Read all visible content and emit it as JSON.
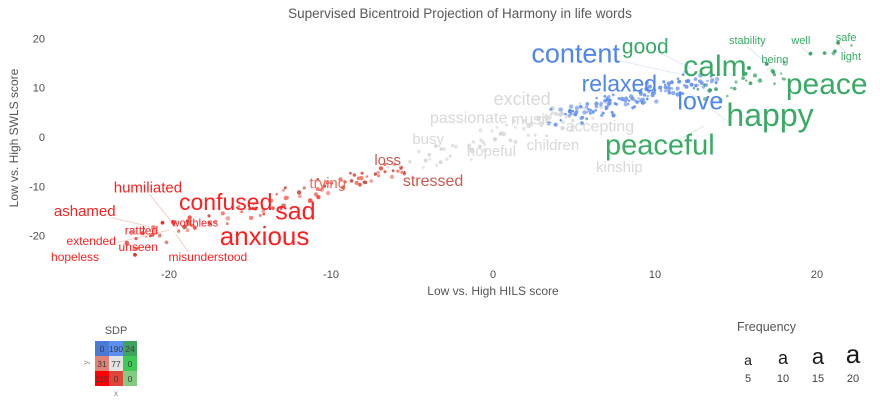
{
  "title": "Supervised Bicentroid Projection of Harmony in life words",
  "axes": {
    "x_label": "Low vs. High HILS score",
    "y_label": "Low vs. High SWLS score",
    "x_ticks": [
      -20,
      -10,
      0,
      10,
      20
    ],
    "y_ticks": [
      20,
      10,
      0,
      -10,
      -20
    ]
  },
  "chart_data": {
    "type": "scatter",
    "title": "Supervised Bicentroid Projection of Harmony in life words",
    "xlabel": "Low vs. High HILS score",
    "ylabel": "Low vs. High SWLS score",
    "xlim": [
      -27,
      24
    ],
    "ylim": [
      -27,
      23
    ],
    "grid": false,
    "legend_position": "bottom",
    "palette": {
      "red": "#ff1f1f",
      "redMuted": "#cd5a50",
      "redLight": "#f4695a",
      "gray": "#d9d9d9",
      "blue": "#4f86ec",
      "green": "#3aab66"
    },
    "words": [
      {
        "text": "hopeless",
        "x": -25.8,
        "y": -24.5,
        "size": 12,
        "color": "red"
      },
      {
        "text": "extended",
        "x": -24.8,
        "y": -21.3,
        "size": 12,
        "color": "red"
      },
      {
        "text": "ashamed",
        "x": -25.2,
        "y": -15.2,
        "size": 15,
        "color": "red"
      },
      {
        "text": "unseen",
        "x": -21.9,
        "y": -22.5,
        "size": 12,
        "color": "red"
      },
      {
        "text": "rattled",
        "x": -21.7,
        "y": -19.1,
        "size": 12,
        "color": "red"
      },
      {
        "text": "humiliated",
        "x": -21.3,
        "y": -10.5,
        "size": 15,
        "color": "red"
      },
      {
        "text": "worthless",
        "x": -18.4,
        "y": -17.6,
        "size": 11,
        "color": "red"
      },
      {
        "text": "misunderstood",
        "x": -17.6,
        "y": -24.5,
        "size": 12,
        "color": "red"
      },
      {
        "text": "confused",
        "x": -16.5,
        "y": -13.6,
        "size": 23,
        "color": "red"
      },
      {
        "text": "anxious",
        "x": -14.1,
        "y": -20.5,
        "size": 26,
        "color": "red"
      },
      {
        "text": "sad",
        "x": -12.2,
        "y": -15.4,
        "size": 25,
        "color": "red"
      },
      {
        "text": "trying",
        "x": -10.2,
        "y": -9.5,
        "size": 15,
        "color": "redLight"
      },
      {
        "text": "loss",
        "x": -6.5,
        "y": -4.9,
        "size": 15,
        "color": "redMuted"
      },
      {
        "text": "stressed",
        "x": -3.7,
        "y": -9.1,
        "size": 16,
        "color": "redMuted"
      },
      {
        "text": "busy",
        "x": -4.0,
        "y": -0.6,
        "size": 15,
        "color": "gray"
      },
      {
        "text": "passionate",
        "x": -1.5,
        "y": 3.7,
        "size": 16,
        "color": "gray"
      },
      {
        "text": "hopeful",
        "x": -0.1,
        "y": -3.0,
        "size": 15,
        "color": "gray"
      },
      {
        "text": "excited",
        "x": 1.8,
        "y": 7.5,
        "size": 18,
        "color": "gray"
      },
      {
        "text": "music",
        "x": 2.4,
        "y": 3.4,
        "size": 16,
        "color": "gray"
      },
      {
        "text": "children",
        "x": 3.7,
        "y": -1.8,
        "size": 15,
        "color": "gray"
      },
      {
        "text": "accepting",
        "x": 6.6,
        "y": 2.0,
        "size": 16,
        "color": "gray"
      },
      {
        "text": "kinship",
        "x": 7.8,
        "y": -6.3,
        "size": 15,
        "color": "gray"
      },
      {
        "text": "content",
        "x": 5.1,
        "y": 16.6,
        "size": 27,
        "color": "blue"
      },
      {
        "text": "relaxed",
        "x": 7.8,
        "y": 10.5,
        "size": 23,
        "color": "blue"
      },
      {
        "text": "love",
        "x": 12.8,
        "y": 6.9,
        "size": 25,
        "color": "blue"
      },
      {
        "text": "good",
        "x": 9.4,
        "y": 18.1,
        "size": 21,
        "color": "green"
      },
      {
        "text": "calm",
        "x": 13.7,
        "y": 14.0,
        "size": 30,
        "color": "green"
      },
      {
        "text": "stability",
        "x": 15.7,
        "y": 19.5,
        "size": 11,
        "color": "green"
      },
      {
        "text": "being",
        "x": 17.4,
        "y": 15.6,
        "size": 11,
        "color": "green"
      },
      {
        "text": "well",
        "x": 19.0,
        "y": 19.5,
        "size": 11,
        "color": "green"
      },
      {
        "text": "safe",
        "x": 21.8,
        "y": 20.1,
        "size": 11,
        "color": "green"
      },
      {
        "text": "light",
        "x": 22.1,
        "y": 16.2,
        "size": 11,
        "color": "green"
      },
      {
        "text": "peace",
        "x": 20.6,
        "y": 10.3,
        "size": 30,
        "color": "green"
      },
      {
        "text": "happy",
        "x": 17.1,
        "y": 3.9,
        "size": 32,
        "color": "green"
      },
      {
        "text": "peaceful",
        "x": 10.3,
        "y": -2.0,
        "size": 29,
        "color": "green"
      }
    ],
    "clusters": [
      {
        "name": "low-harmony-red",
        "x1": -22.5,
        "y1": -21.5,
        "x2": -5.5,
        "y2": -6.0,
        "count": 100,
        "jx": 1.8,
        "jy": 1.9,
        "colors": [
          "#ff4233",
          "#e35146",
          "#d97d72",
          "#f19b90",
          "#c44d42",
          "#ff6e61"
        ]
      },
      {
        "name": "mid-gray",
        "x1": -5.0,
        "y1": -5.5,
        "x2": 6.5,
        "y2": 6.5,
        "count": 85,
        "jx": 2.4,
        "jy": 2.2,
        "colors": [
          "#dedede",
          "#d6d6d6",
          "#e3e3e3"
        ]
      },
      {
        "name": "high-blue",
        "x1": 4.5,
        "y1": 4.0,
        "x2": 13.0,
        "y2": 12.0,
        "count": 135,
        "jx": 2.0,
        "jy": 1.9,
        "colors": [
          "#7fa3f0",
          "#6b96ee",
          "#92b1f3",
          "#5b8def"
        ]
      },
      {
        "name": "high-green",
        "x1": 13.5,
        "y1": 8.0,
        "x2": 22.0,
        "y2": 19.0,
        "count": 26,
        "jx": 2.2,
        "jy": 2.0,
        "colors": [
          "#55b37e",
          "#3fa468",
          "#6fc092"
        ]
      }
    ],
    "extra_dots": [
      {
        "x": -22.1,
        "y": -23.9,
        "color": "#e03a2e"
      },
      {
        "x": -20.4,
        "y": -17.4,
        "color": "#e03a2e"
      },
      {
        "x": 16.9,
        "y": 14.8,
        "color": "#3fa468"
      },
      {
        "x": 19.6,
        "y": 16.9,
        "color": "#3fa468"
      },
      {
        "x": 21.3,
        "y": 19.1,
        "color": "#3fa468"
      },
      {
        "x": 15.8,
        "y": 14.0,
        "color": "#2e9e57"
      },
      {
        "x": 17.3,
        "y": 13.2,
        "color": "#3fa468"
      },
      {
        "x": 13.4,
        "y": 9.5,
        "color": "#3fa468"
      }
    ],
    "leader_lines": [
      {
        "x1": -23.6,
        "y1": -16.3,
        "x2": -21.2,
        "y2": -18.2,
        "color": "#f3c1bc"
      },
      {
        "x1": -21.2,
        "y1": -11.6,
        "x2": -19.5,
        "y2": -18.6,
        "color": "#f3c1bc"
      },
      {
        "x1": -23.2,
        "y1": -21.4,
        "x2": -20.0,
        "y2": -18.9,
        "color": "#f3c1bc"
      },
      {
        "x1": -18.8,
        "y1": -23.4,
        "x2": -19.6,
        "y2": -19.6,
        "color": "#f3c1bc"
      },
      {
        "x1": 15.7,
        "y1": 18.4,
        "x2": 16.8,
        "y2": 15.2,
        "color": "#cfe6d8"
      },
      {
        "x1": 19.0,
        "y1": 18.4,
        "x2": 19.5,
        "y2": 16.9,
        "color": "#cfe6d8"
      },
      {
        "x1": 17.4,
        "y1": 14.6,
        "x2": 16.9,
        "y2": 13.6,
        "color": "#cfe6d8"
      },
      {
        "x1": 21.8,
        "y1": 17.0,
        "x2": 21.3,
        "y2": 18.9,
        "color": "#cfe6d8"
      },
      {
        "x1": 11.5,
        "y1": -0.5,
        "x2": 13.0,
        "y2": 2.2,
        "color": "#cfe6d8"
      },
      {
        "x1": 7.6,
        "y1": 15.6,
        "x2": 11.5,
        "y2": 12.8,
        "color": "#dbe4f4"
      },
      {
        "x1": 10.2,
        "y1": 17.2,
        "x2": 12.3,
        "y2": 13.8,
        "color": "#dbe4f4"
      },
      {
        "x1": 13.4,
        "y1": 5.9,
        "x2": 14.7,
        "y2": 2.6,
        "color": "#dbe4f4"
      },
      {
        "x1": 10.5,
        "y1": 10.2,
        "x2": 12.7,
        "y2": 8.1,
        "color": "#dbe4f4"
      }
    ]
  },
  "legend_sdp": {
    "title": "SDP",
    "x_label": "x",
    "y_label": "y",
    "cells": [
      {
        "value": "0",
        "color": "#4b79d6"
      },
      {
        "value": "190",
        "color": "#5b8ff2"
      },
      {
        "value": "24",
        "color": "#3ea35d"
      },
      {
        "value": "31",
        "color": "#df8376"
      },
      {
        "value": "77",
        "color": "#e4e4e4"
      },
      {
        "value": "0",
        "color": "#3ecb55"
      },
      {
        "value": "115",
        "color": "#fb0007"
      },
      {
        "value": "0",
        "color": "#e0453a"
      },
      {
        "value": "0",
        "color": "#83cb83"
      }
    ]
  },
  "legend_frequency": {
    "title": "Frequency",
    "glyph": "a",
    "items": [
      {
        "label": "5",
        "size": 14
      },
      {
        "label": "10",
        "size": 18
      },
      {
        "label": "15",
        "size": 22
      },
      {
        "label": "20",
        "size": 26
      }
    ]
  }
}
